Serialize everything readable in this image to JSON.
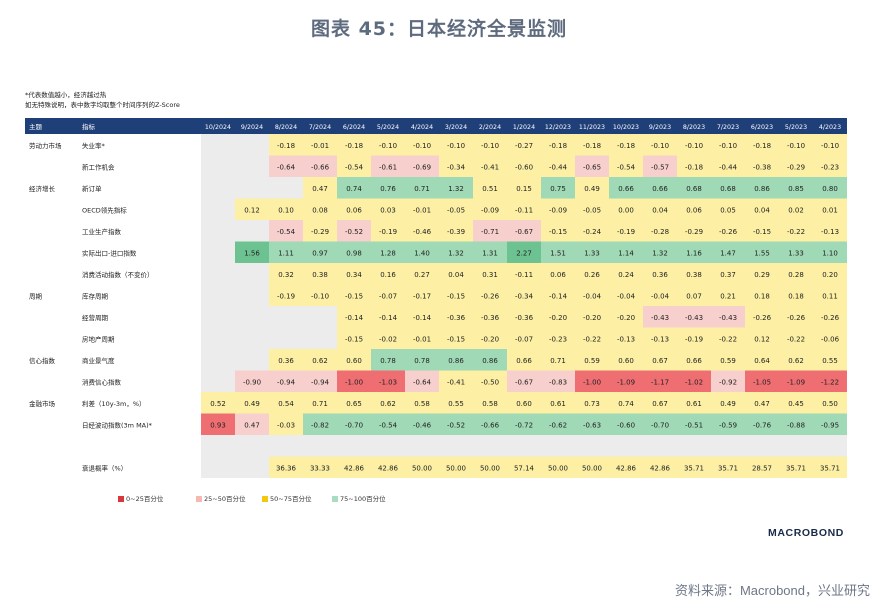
{
  "title": "图表 45：日本经济全景监测",
  "notes": [
    "*代表数值越小，经济越过热",
    "如无特殊说明，表中数字均取整个时间序列的Z-Score"
  ],
  "header": {
    "topic": "主题",
    "indicator": "指标"
  },
  "colors": {
    "header_bg": "#1f3f78",
    "red": "#ee6e72",
    "pink": "#f7cfcc",
    "yellow": "#fdf0a4",
    "green": "#9fd9b6",
    "grey": "#ececec"
  },
  "chart_data": {
    "type": "heatmap",
    "columns": [
      "10/2024",
      "9/2024",
      "8/2024",
      "7/2024",
      "6/2024",
      "5/2024",
      "4/2024",
      "3/2024",
      "2/2024",
      "1/2024",
      "12/2023",
      "11/2023",
      "10/2023",
      "9/2023",
      "8/2023",
      "7/2023",
      "6/2023",
      "5/2023",
      "4/2023"
    ],
    "rows": [
      {
        "group": "劳动力市场",
        "name": "失业率*",
        "values": [
          null,
          null,
          "-0.18",
          "-0.01",
          "-0.18",
          "-0.10",
          "-0.10",
          "-0.10",
          "-0.10",
          "-0.27",
          "-0.18",
          "-0.18",
          "-0.18",
          "-0.10",
          "-0.10",
          "-0.10",
          "-0.18",
          "-0.10",
          "-0.10"
        ],
        "colors": [
          "G",
          "G",
          "Y",
          "Y",
          "Y",
          "Y",
          "Y",
          "Y",
          "Y",
          "Y",
          "Y",
          "Y",
          "Y",
          "Y",
          "Y",
          "Y",
          "Y",
          "Y",
          "Y"
        ]
      },
      {
        "group": "",
        "name": "新工作机会",
        "values": [
          null,
          null,
          "-0.64",
          "-0.66",
          "-0.54",
          "-0.61",
          "-0.69",
          "-0.34",
          "-0.41",
          "-0.60",
          "-0.44",
          "-0.65",
          "-0.54",
          "-0.57",
          "-0.18",
          "-0.44",
          "-0.38",
          "-0.29",
          "-0.23"
        ],
        "colors": [
          "G",
          "G",
          "P",
          "P",
          "Y",
          "P",
          "P",
          "Y",
          "Y",
          "Y",
          "Y",
          "P",
          "Y",
          "P",
          "Y",
          "Y",
          "Y",
          "Y",
          "Y"
        ]
      },
      {
        "group": "经济增长",
        "name": "新订单",
        "values": [
          null,
          null,
          null,
          "0.47",
          "0.74",
          "0.76",
          "0.71",
          "1.32",
          "0.51",
          "0.15",
          "0.75",
          "0.49",
          "0.66",
          "0.66",
          "0.68",
          "0.68",
          "0.86",
          "0.85",
          "0.80"
        ],
        "colors": [
          "G",
          "G",
          "G",
          "Y",
          "L",
          "L",
          "L",
          "L",
          "Y",
          "Y",
          "L",
          "Y",
          "L",
          "L",
          "L",
          "L",
          "L",
          "L",
          "L"
        ]
      },
      {
        "group": "",
        "name": "OECD领先指标",
        "values": [
          null,
          "0.12",
          "0.10",
          "0.08",
          "0.06",
          "0.03",
          "-0.01",
          "-0.05",
          "-0.09",
          "-0.11",
          "-0.09",
          "-0.05",
          "0.00",
          "0.04",
          "0.06",
          "0.05",
          "0.04",
          "0.02",
          "0.01"
        ],
        "colors": [
          "G",
          "Y",
          "Y",
          "Y",
          "Y",
          "Y",
          "Y",
          "Y",
          "Y",
          "Y",
          "Y",
          "Y",
          "Y",
          "Y",
          "Y",
          "Y",
          "Y",
          "Y",
          "Y"
        ]
      },
      {
        "group": "",
        "name": "工业生产指数",
        "values": [
          null,
          null,
          "-0.54",
          "-0.29",
          "-0.52",
          "-0.19",
          "-0.46",
          "-0.39",
          "-0.71",
          "-0.67",
          "-0.15",
          "-0.24",
          "-0.19",
          "-0.28",
          "-0.29",
          "-0.26",
          "-0.15",
          "-0.22",
          "-0.13"
        ],
        "colors": [
          "G",
          "G",
          "P",
          "Y",
          "P",
          "Y",
          "Y",
          "Y",
          "P",
          "P",
          "Y",
          "Y",
          "Y",
          "Y",
          "Y",
          "Y",
          "Y",
          "Y",
          "Y"
        ]
      },
      {
        "group": "",
        "name": "实际出口-进口指数",
        "values": [
          null,
          "1.56",
          "1.11",
          "0.97",
          "0.98",
          "1.28",
          "1.40",
          "1.32",
          "1.31",
          "2.27",
          "1.51",
          "1.33",
          "1.14",
          "1.32",
          "1.16",
          "1.47",
          "1.55",
          "1.33",
          "1.10"
        ],
        "colors": [
          "G",
          "D",
          "L",
          "L",
          "L",
          "L",
          "L",
          "L",
          "L",
          "D",
          "L",
          "L",
          "L",
          "L",
          "L",
          "L",
          "L",
          "L",
          "L"
        ]
      },
      {
        "group": "",
        "name": "消费活动指数（不变价）",
        "values": [
          null,
          null,
          "0.32",
          "0.38",
          "0.34",
          "0.16",
          "0.27",
          "0.04",
          "0.31",
          "-0.11",
          "0.06",
          "0.26",
          "0.24",
          "0.36",
          "0.38",
          "0.37",
          "0.29",
          "0.28",
          "0.20"
        ],
        "colors": [
          "G",
          "G",
          "Y",
          "Y",
          "Y",
          "Y",
          "Y",
          "Y",
          "Y",
          "Y",
          "Y",
          "Y",
          "Y",
          "Y",
          "Y",
          "Y",
          "Y",
          "Y",
          "Y"
        ]
      },
      {
        "group": "周期",
        "name": "库存周期",
        "values": [
          null,
          null,
          "-0.19",
          "-0.10",
          "-0.15",
          "-0.07",
          "-0.17",
          "-0.15",
          "-0.26",
          "-0.34",
          "-0.14",
          "-0.04",
          "-0.04",
          "-0.04",
          "0.07",
          "0.21",
          "0.18",
          "0.18",
          "0.11"
        ],
        "colors": [
          "G",
          "G",
          "Y",
          "Y",
          "Y",
          "Y",
          "Y",
          "Y",
          "Y",
          "Y",
          "Y",
          "Y",
          "Y",
          "Y",
          "Y",
          "Y",
          "Y",
          "Y",
          "Y"
        ]
      },
      {
        "group": "",
        "name": "经营周期",
        "values": [
          null,
          null,
          null,
          null,
          "-0.14",
          "-0.14",
          "-0.14",
          "-0.36",
          "-0.36",
          "-0.36",
          "-0.20",
          "-0.20",
          "-0.20",
          "-0.43",
          "-0.43",
          "-0.43",
          "-0.26",
          "-0.26",
          "-0.26"
        ],
        "colors": [
          "G",
          "G",
          "G",
          "G",
          "Y",
          "Y",
          "Y",
          "Y",
          "Y",
          "Y",
          "Y",
          "Y",
          "Y",
          "P",
          "P",
          "P",
          "Y",
          "Y",
          "Y"
        ]
      },
      {
        "group": "",
        "name": "房地产周期",
        "values": [
          null,
          null,
          null,
          null,
          "-0.15",
          "-0.02",
          "-0.01",
          "-0.15",
          "-0.20",
          "-0.07",
          "-0.23",
          "-0.22",
          "-0.13",
          "-0.13",
          "-0.19",
          "-0.22",
          "0.12",
          "-0.22",
          "-0.06"
        ],
        "colors": [
          "G",
          "G",
          "G",
          "G",
          "Y",
          "Y",
          "Y",
          "Y",
          "Y",
          "Y",
          "Y",
          "Y",
          "Y",
          "Y",
          "Y",
          "Y",
          "Y",
          "Y",
          "Y"
        ]
      },
      {
        "group": "信心指数",
        "name": "商业景气度",
        "values": [
          null,
          null,
          "0.36",
          "0.62",
          "0.60",
          "0.78",
          "0.78",
          "0.86",
          "0.86",
          "0.66",
          "0.71",
          "0.59",
          "0.60",
          "0.67",
          "0.66",
          "0.59",
          "0.64",
          "0.62",
          "0.55"
        ],
        "colors": [
          "G",
          "G",
          "Y",
          "Y",
          "Y",
          "L",
          "L",
          "L",
          "L",
          "Y",
          "Y",
          "Y",
          "Y",
          "Y",
          "Y",
          "Y",
          "Y",
          "Y",
          "Y"
        ]
      },
      {
        "group": "",
        "name": "消费信心指数",
        "values": [
          null,
          "-0.90",
          "-0.94",
          "-0.94",
          "-1.00",
          "-1.03",
          "-0.64",
          "-0.41",
          "-0.50",
          "-0.67",
          "-0.83",
          "-1.00",
          "-1.09",
          "-1.17",
          "-1.02",
          "-0.92",
          "-1.05",
          "-1.09",
          "-1.22"
        ],
        "colors": [
          "G",
          "P",
          "P",
          "P",
          "R",
          "R",
          "P",
          "Y",
          "Y",
          "P",
          "P",
          "R",
          "R",
          "R",
          "R",
          "P",
          "R",
          "R",
          "R"
        ]
      },
      {
        "group": "金融市场",
        "name": "利差（10y-3m，%）",
        "values": [
          "0.52",
          "0.49",
          "0.54",
          "0.71",
          "0.65",
          "0.62",
          "0.58",
          "0.55",
          "0.58",
          "0.60",
          "0.61",
          "0.73",
          "0.74",
          "0.67",
          "0.61",
          "0.49",
          "0.47",
          "0.45",
          "0.50"
        ],
        "colors": [
          "Y",
          "Y",
          "Y",
          "Y",
          "Y",
          "Y",
          "Y",
          "Y",
          "Y",
          "Y",
          "Y",
          "Y",
          "Y",
          "Y",
          "Y",
          "Y",
          "Y",
          "Y",
          "Y"
        ]
      },
      {
        "group": "",
        "name": "日经波动指数(3m MA)*",
        "values": [
          "0.93",
          "0.47",
          "-0.03",
          "-0.82",
          "-0.70",
          "-0.54",
          "-0.46",
          "-0.52",
          "-0.66",
          "-0.72",
          "-0.62",
          "-0.63",
          "-0.60",
          "-0.70",
          "-0.51",
          "-0.59",
          "-0.76",
          "-0.88",
          "-0.95"
        ],
        "colors": [
          "R",
          "P",
          "Y",
          "L",
          "L",
          "L",
          "L",
          "L",
          "L",
          "L",
          "L",
          "L",
          "L",
          "L",
          "L",
          "L",
          "L",
          "L",
          "L"
        ]
      },
      {
        "group": "",
        "name": "",
        "values": [
          null,
          null,
          null,
          null,
          null,
          null,
          null,
          null,
          null,
          null,
          null,
          null,
          null,
          null,
          null,
          null,
          null,
          null,
          null
        ],
        "colors": [
          "G",
          "G",
          "G",
          "G",
          "G",
          "G",
          "G",
          "G",
          "G",
          "G",
          "G",
          "G",
          "G",
          "G",
          "G",
          "G",
          "G",
          "G",
          "G"
        ]
      },
      {
        "group": "",
        "name": "衰退概率（%）",
        "values": [
          null,
          null,
          "36.36",
          "33.33",
          "42.86",
          "42.86",
          "50.00",
          "50.00",
          "50.00",
          "57.14",
          "50.00",
          "50.00",
          "42.86",
          "42.86",
          "35.71",
          "35.71",
          "28.57",
          "35.71",
          "35.71"
        ],
        "colors": [
          "G",
          "G",
          "Y",
          "Y",
          "Y",
          "Y",
          "Y",
          "Y",
          "Y",
          "Y",
          "Y",
          "Y",
          "Y",
          "Y",
          "Y",
          "Y",
          "Y",
          "Y",
          "Y"
        ]
      }
    ],
    "legend": [
      {
        "label": "0~25百分位",
        "color": "#d9363e"
      },
      {
        "label": "25~50百分位",
        "color": "#f5b8b3"
      },
      {
        "label": "50~75百分位",
        "color": "#f2c811"
      },
      {
        "label": "75~100百分位",
        "color": "#a9dcc0"
      }
    ]
  },
  "brand": "MACROBOND",
  "source": "资料来源：Macrobond，兴业研究"
}
